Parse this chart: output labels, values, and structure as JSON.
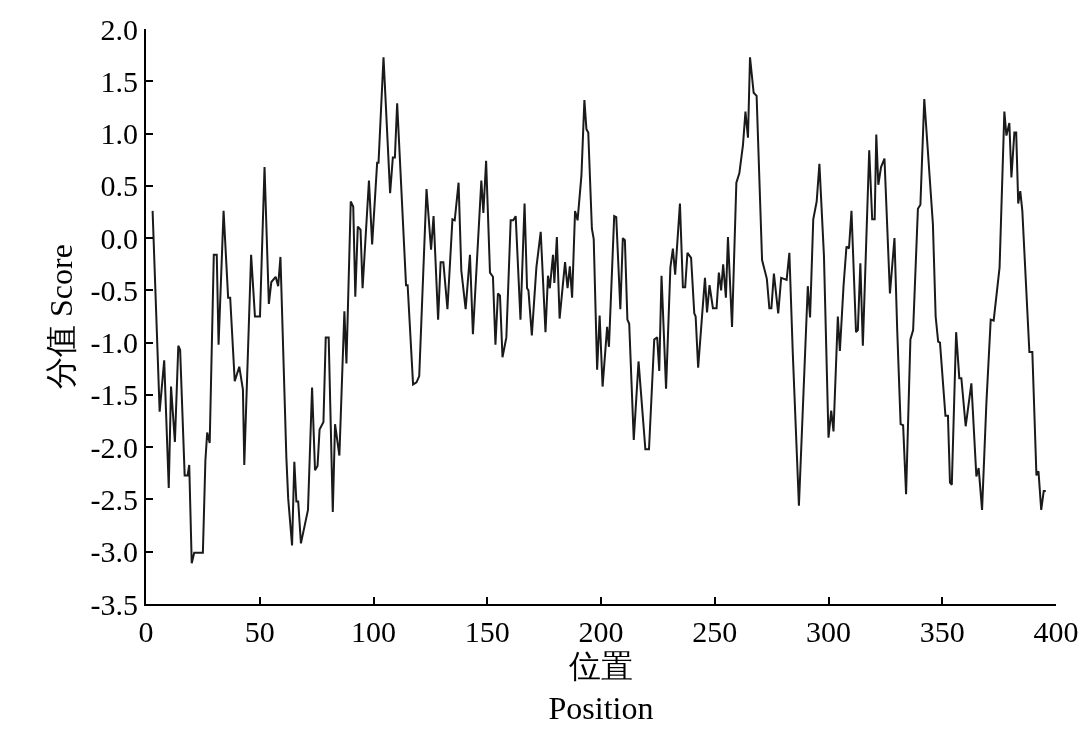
{
  "chart_data": {
    "type": "line",
    "xlabel": "位置\nPosition",
    "ylabel": "分值 Score",
    "xlim": [
      0,
      400
    ],
    "xticks": [
      0,
      50,
      100,
      150,
      200,
      250,
      300,
      350,
      400
    ],
    "ylim": [
      -3.5,
      2.0
    ],
    "yticks": [
      {
        "value": -3.5,
        "label": "-3.5"
      },
      {
        "value": -3.0,
        "label": "-3.0"
      },
      {
        "value": -2.5,
        "label": "-2.5"
      },
      {
        "value": -2.0,
        "label": "-2.0"
      },
      {
        "value": -1.5,
        "label": "-1.5"
      },
      {
        "value": -1.0,
        "label": "-1.0"
      },
      {
        "value": -0.5,
        "label": "-0.5"
      },
      {
        "value": 0.0,
        "label": "0.0"
      },
      {
        "value": 0.5,
        "label": "0.5"
      },
      {
        "value": 1.0,
        "label": "1.0"
      },
      {
        "value": 1.5,
        "label": "1.5"
      },
      {
        "value": 2.0,
        "label": "2.0"
      }
    ],
    "marker": "none",
    "line_style": "solid",
    "series": [
      {
        "color": "#1a1a1a",
        "x": [
          2.9,
          6,
          8,
          10,
          11,
          12.7,
          14.2,
          15,
          17,
          18.3,
          19,
          20.1,
          21.2,
          25,
          26.1,
          26.9,
          28,
          29.8,
          31.1,
          31.9,
          34.1,
          36.1,
          37,
          39,
          41,
          42.6,
          43.2,
          46.2,
          47.9,
          50.1,
          52.1,
          54,
          55.1,
          57,
          58.1,
          59.1,
          61.7,
          62.5,
          64.2,
          65.2,
          66.1,
          66.9,
          68.1,
          71.2,
          73,
          74.3,
          75.4,
          76.3,
          78,
          79,
          80.3,
          82.1,
          83.1,
          85,
          87.2,
          88.1,
          90,
          91.1,
          92,
          93.1,
          94.3,
          95.2,
          98,
          99.4,
          101.6,
          102.2,
          104.4,
          107.3,
          108.5,
          109.4,
          110.4,
          114.3,
          115,
          117.4,
          118.9,
          120.1,
          123.3,
          125.3,
          126.4,
          128.4,
          129.5,
          130.7,
          132.5,
          134.7,
          135.7,
          137.4,
          138.6,
          140.5,
          142.4,
          143.7,
          147.4,
          148.3,
          149.5,
          151.2,
          152.5,
          153.6,
          154.7,
          155.6,
          156.7,
          158.4,
          160.3,
          161.4,
          162.5,
          164.6,
          166.4,
          167.5,
          168.1,
          169.6,
          171.6,
          173.5,
          175.6,
          176.7,
          177.5,
          178.9,
          179.5,
          180.6,
          181.8,
          184.2,
          185.3,
          186.3,
          187.3,
          188.6,
          189.7,
          191.4,
          192.7,
          193.6,
          194.4,
          196,
          196.8,
          198.3,
          199.4,
          200.7,
          202.7,
          203.5,
          205.8,
          206.7,
          208.5,
          209.6,
          210.5,
          211.6,
          212.4,
          214.4,
          216.5,
          219.5,
          221.1,
          223.4,
          224.7,
          225.6,
          226.6,
          228.6,
          230.5,
          231.6,
          232.6,
          234.7,
          236,
          237,
          238,
          239.6,
          241,
          241.6,
          242.7,
          244.3,
          245.7,
          246.6,
          247.7,
          249.2,
          250.8,
          251.8,
          252.8,
          253.7,
          254.9,
          255.8,
          257.6,
          259.5,
          260.8,
          262.4,
          263.5,
          264.6,
          265.5,
          267.1,
          268.4,
          270.8,
          272.9,
          274,
          274.9,
          276,
          277.9,
          279.2,
          281.6,
          282.8,
          284.3,
          287,
          290.9,
          291.9,
          293.3,
          294.8,
          296,
          298,
          300,
          301.2,
          302.2,
          304.1,
          305,
          306.6,
          307.9,
          309,
          310.1,
          312.1,
          312.9,
          314,
          315.1,
          317.9,
          319.2,
          320.3,
          321,
          321.9,
          323.1,
          324.6,
          327,
          329,
          330.2,
          331.7,
          332.8,
          334.1,
          336,
          337.2,
          339.3,
          340.4,
          342.1,
          345.9,
          347.1,
          348.2,
          349,
          351.4,
          352.5,
          353.4,
          354.2,
          356.1,
          357.5,
          358.4,
          360.3,
          362.8,
          365,
          366,
          367.5,
          369.4,
          371.3,
          372.6,
          375.2,
          377.3,
          378.2,
          379.5,
          380.4,
          381.7,
          382.5,
          383.4,
          384.3,
          385.2,
          388.3,
          389.6,
          391.4,
          392.3,
          393.5,
          394.6,
          395.5
        ],
        "values": [
          0.26,
          -1.66,
          -1.17,
          -2.39,
          -1.42,
          -1.95,
          -1.03,
          -1.07,
          -2.27,
          -2.27,
          -2.17,
          -3.11,
          -3.01,
          -3.01,
          -2.13,
          -1.86,
          -1.96,
          -0.16,
          -0.16,
          -1.02,
          0.26,
          -0.57,
          -0.57,
          -1.37,
          -1.23,
          -1.45,
          -2.17,
          -0.16,
          -0.75,
          -0.75,
          0.68,
          -0.63,
          -0.42,
          -0.37,
          -0.46,
          -0.18,
          -2.1,
          -2.49,
          -2.94,
          -2.14,
          -2.52,
          -2.52,
          -2.92,
          -2.6,
          -1.43,
          -2.22,
          -2.18,
          -1.83,
          -1.76,
          -0.95,
          -0.95,
          -2.62,
          -1.78,
          -2.08,
          -0.7,
          -1.2,
          0.35,
          0.3,
          -0.56,
          0.11,
          0.08,
          -0.48,
          0.55,
          -0.06,
          0.72,
          0.72,
          1.73,
          0.43,
          0.77,
          0.77,
          1.29,
          -0.45,
          -0.45,
          -1.4,
          -1.38,
          -1.32,
          0.47,
          -0.11,
          0.21,
          -0.78,
          -0.23,
          -0.23,
          -0.68,
          0.18,
          0.17,
          0.53,
          -0.31,
          -0.68,
          -0.16,
          -0.92,
          0.55,
          0.24,
          0.74,
          -0.33,
          -0.37,
          -1.02,
          -0.53,
          -0.55,
          -1.14,
          -0.95,
          0.17,
          0.17,
          0.21,
          -0.78,
          0.33,
          -0.48,
          -0.5,
          -0.93,
          -0.28,
          0.06,
          -0.9,
          -0.36,
          -0.48,
          -0.16,
          -0.43,
          0.01,
          -0.77,
          -0.23,
          -0.48,
          -0.27,
          -0.57,
          0.26,
          0.17,
          0.6,
          1.32,
          1.04,
          1.01,
          0.09,
          -0.01,
          -1.26,
          -0.74,
          -1.42,
          -0.85,
          -1.04,
          0.21,
          0.2,
          -0.68,
          0.0,
          -0.02,
          -0.78,
          -0.82,
          -1.93,
          -1.18,
          -2.02,
          -2.02,
          -0.97,
          -0.95,
          -1.27,
          -0.36,
          -1.44,
          -0.28,
          -0.1,
          -0.35,
          0.33,
          -0.47,
          -0.47,
          -0.14,
          -0.19,
          -0.72,
          -0.75,
          -1.24,
          -0.78,
          -0.38,
          -0.71,
          -0.45,
          -0.67,
          -0.67,
          -0.33,
          -0.5,
          -0.25,
          -0.57,
          0.01,
          -0.85,
          0.53,
          0.62,
          0.89,
          1.21,
          0.96,
          1.73,
          1.39,
          1.36,
          -0.21,
          -0.39,
          -0.67,
          -0.67,
          -0.34,
          -0.72,
          -0.38,
          -0.4,
          -0.14,
          -1.1,
          -2.56,
          -0.46,
          -0.76,
          0.18,
          0.35,
          0.71,
          -0.17,
          -1.91,
          -1.65,
          -1.85,
          -0.75,
          -1.08,
          -0.46,
          -0.08,
          -0.1,
          0.26,
          -0.9,
          -0.88,
          -0.24,
          -1.03,
          0.84,
          0.18,
          0.18,
          0.99,
          0.51,
          0.68,
          0.76,
          -0.53,
          0.0,
          -0.88,
          -1.78,
          -1.79,
          -2.45,
          -0.97,
          -0.88,
          0.28,
          0.32,
          1.33,
          0.13,
          -0.75,
          -0.99,
          -1.0,
          -1.7,
          -1.7,
          -2.34,
          -2.36,
          -0.9,
          -1.34,
          -1.34,
          -1.8,
          -1.39,
          -2.28,
          -2.2,
          -2.6,
          -1.58,
          -0.78,
          -0.79,
          -0.28,
          1.21,
          0.98,
          1.1,
          0.58,
          1.01,
          1.01,
          0.33,
          0.45,
          0.26,
          -1.09,
          -1.09,
          -2.27,
          -2.23,
          -2.6,
          -2.42,
          -2.42
        ]
      }
    ]
  }
}
